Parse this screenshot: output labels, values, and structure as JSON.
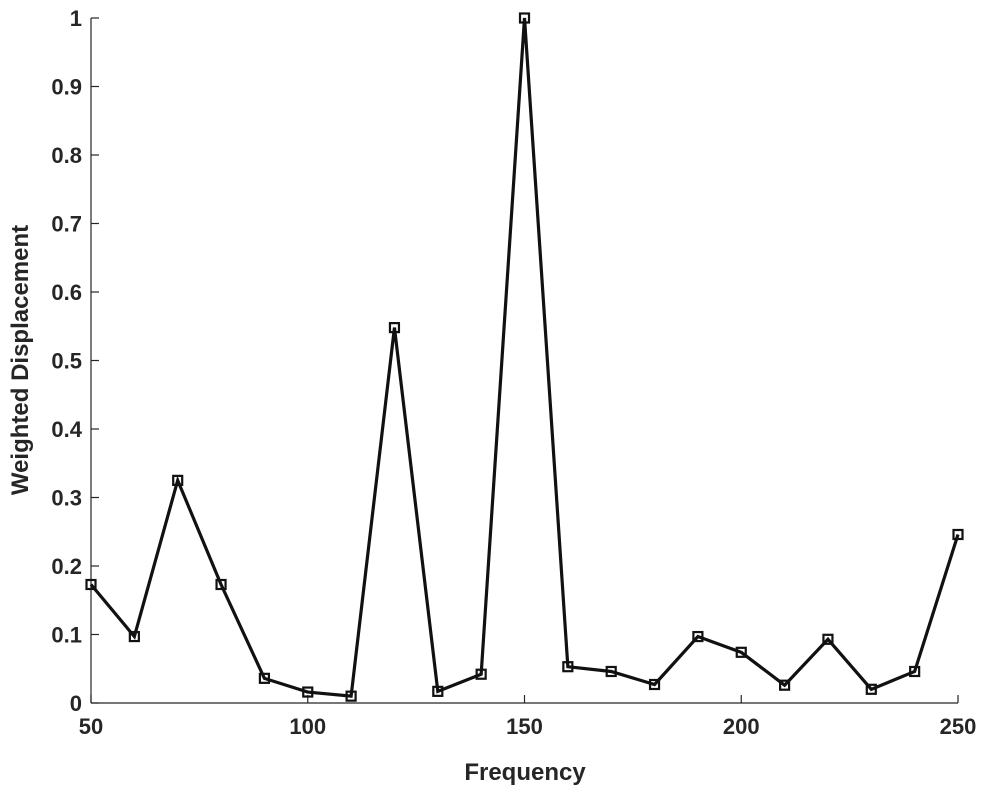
{
  "chart_data": {
    "type": "line",
    "title": "",
    "xlabel": "Frequency",
    "ylabel": "Weighted Displacement",
    "xlim": [
      50,
      250
    ],
    "ylim": [
      0,
      1
    ],
    "grid": false,
    "legend": "none",
    "x_ticks": [
      "50",
      "100",
      "150",
      "200",
      "250"
    ],
    "y_ticks": [
      "0",
      "0.1",
      "0.2",
      "0.3",
      "0.4",
      "0.5",
      "0.6",
      "0.7",
      "0.8",
      "0.9",
      "1"
    ],
    "line_color": "#111111",
    "marker": "square",
    "series": [
      {
        "x": [
          50,
          60,
          70,
          80,
          90,
          100,
          110,
          120,
          130,
          140,
          150,
          160,
          170,
          180,
          190,
          200,
          210,
          220,
          230,
          240,
          250
        ],
        "values": [
          0.173,
          0.097,
          0.325,
          0.173,
          0.036,
          0.016,
          0.01,
          0.548,
          0.017,
          0.042,
          1.0,
          0.053,
          0.046,
          0.027,
          0.097,
          0.074,
          0.026,
          0.093,
          0.02,
          0.046,
          0.246
        ]
      }
    ]
  }
}
